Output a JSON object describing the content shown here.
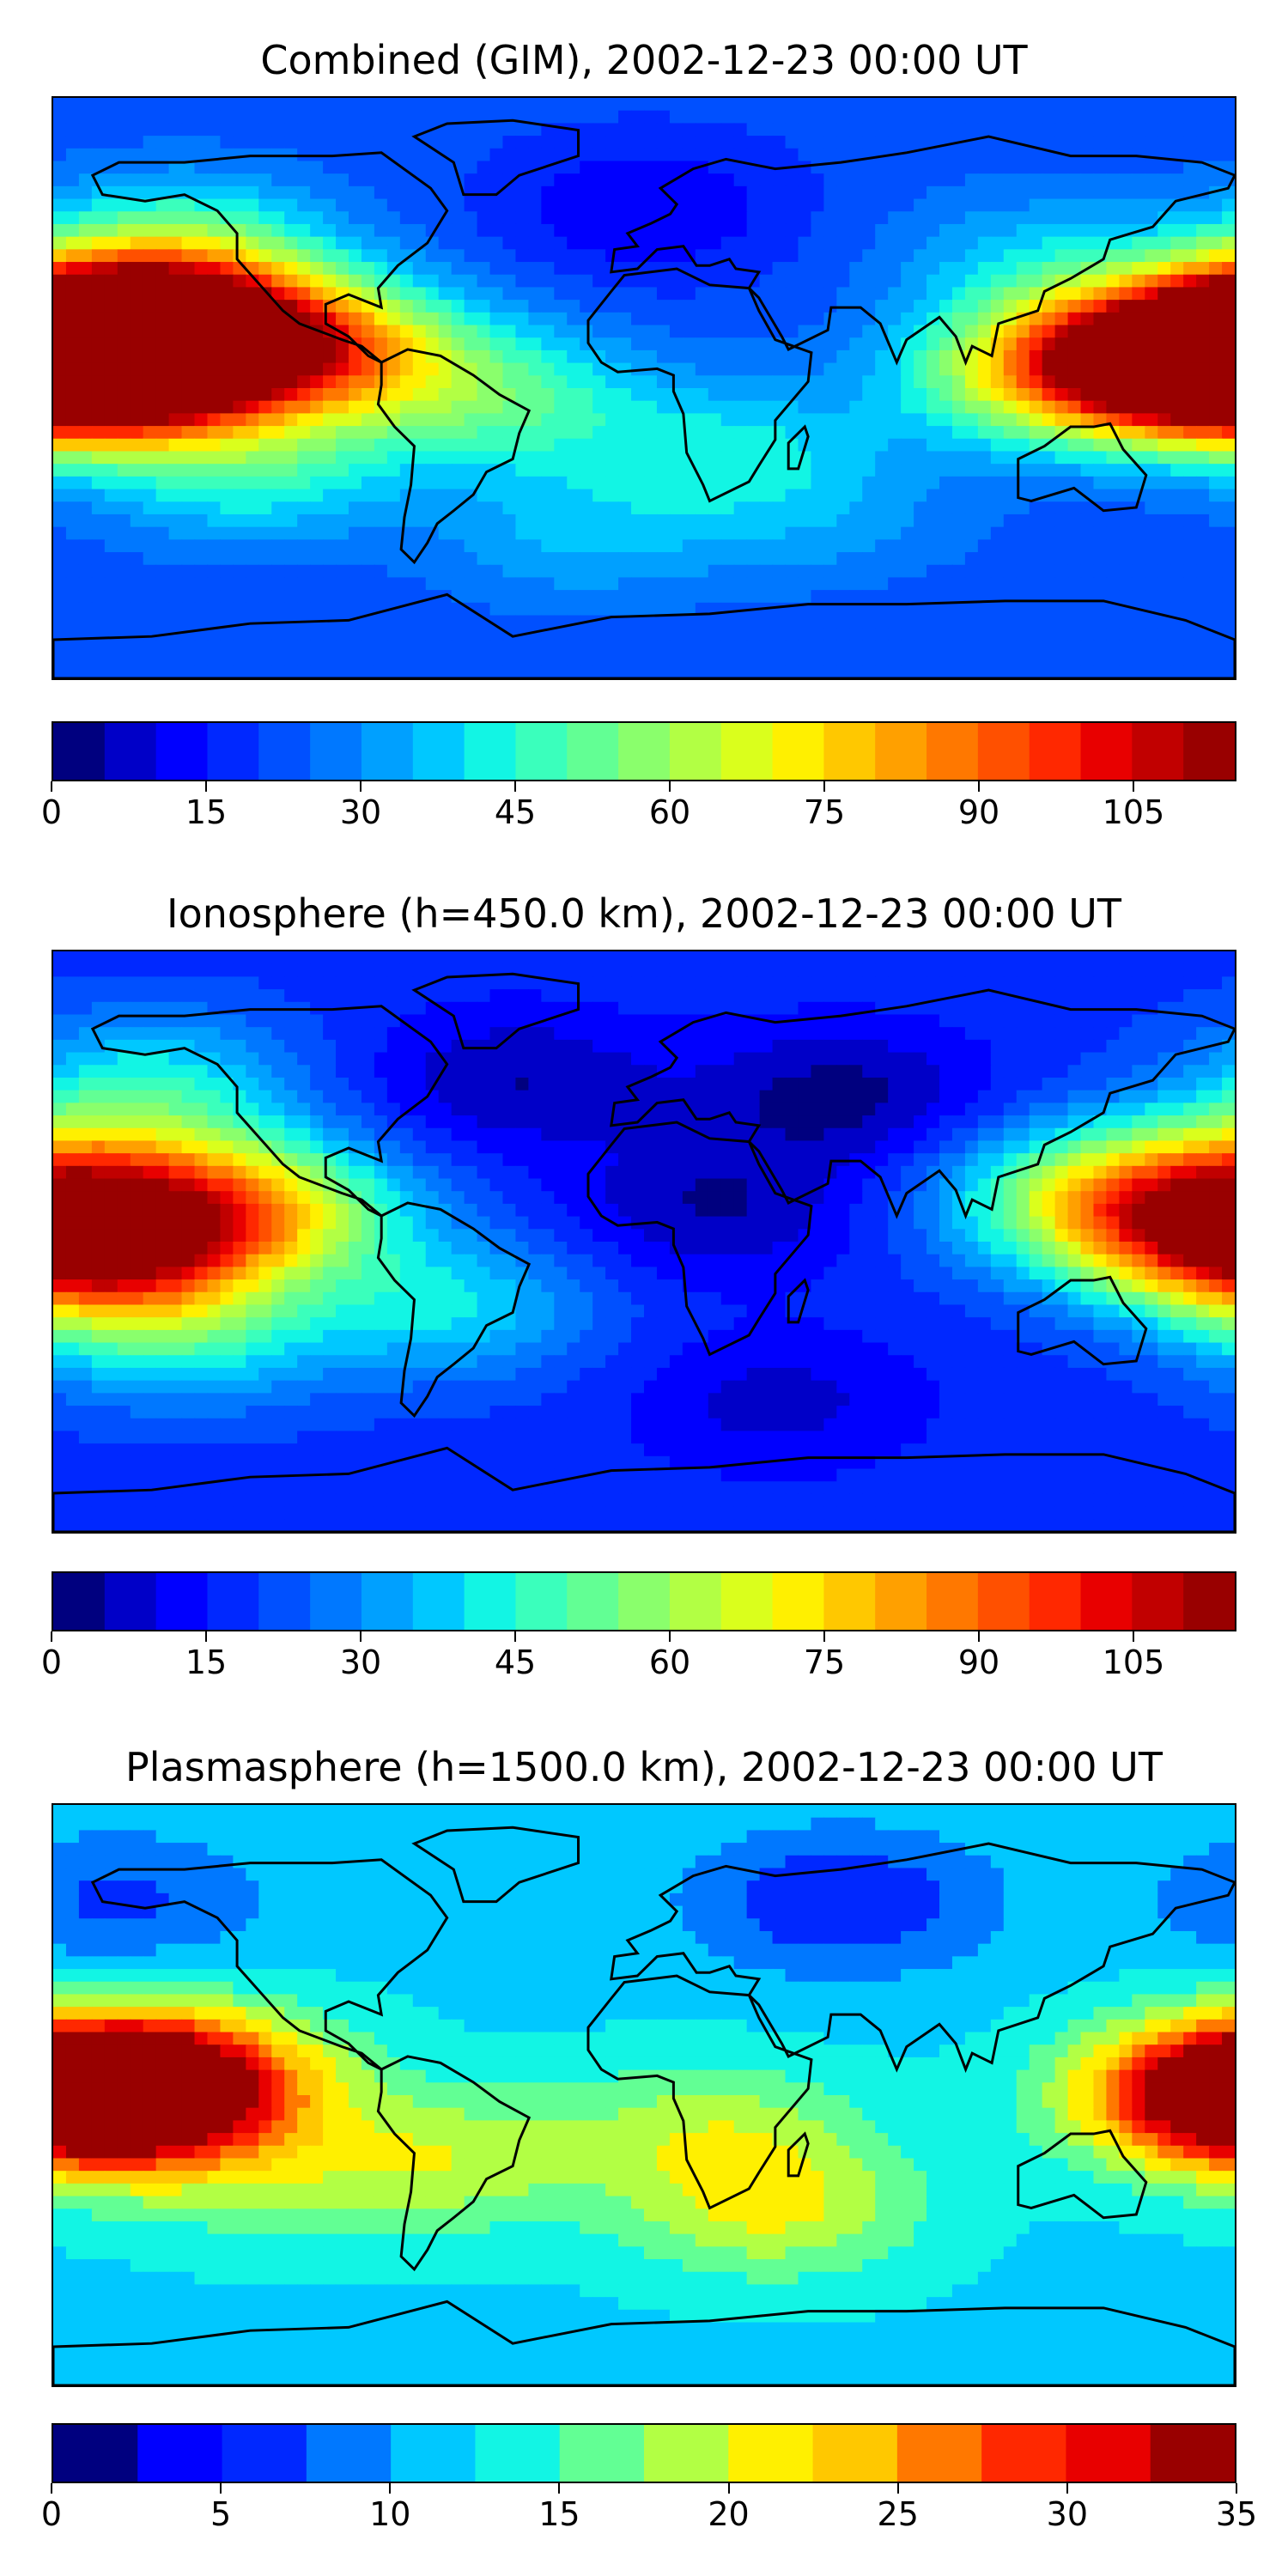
{
  "panels": [
    {
      "title": "Combined (GIM), 2002-12-23 00:00 UT",
      "colorbar": {
        "min": 0,
        "max": 115,
        "step": 5,
        "ticks": [
          "0",
          "15",
          "30",
          "45",
          "60",
          "75",
          "90",
          "105"
        ]
      },
      "blobs": [
        {
          "lon": -160,
          "lat": 20,
          "value": 95
        },
        {
          "lon": -170,
          "lat": 5,
          "value": 112
        },
        {
          "lon": -130,
          "lat": 15,
          "value": 85
        },
        {
          "lon": -90,
          "lat": 10,
          "value": 60
        },
        {
          "lon": 160,
          "lat": 10,
          "value": 85
        },
        {
          "lon": 125,
          "lat": 5,
          "value": 65
        },
        {
          "lon": -40,
          "lat": -5,
          "value": 45
        },
        {
          "lon": -120,
          "lat": -25,
          "value": 45
        },
        {
          "lon": 30,
          "lat": -20,
          "value": 40
        },
        {
          "lon": -140,
          "lat": 45,
          "value": 45
        },
        {
          "lon": 120,
          "lat": 40,
          "value": 35
        },
        {
          "lon": -20,
          "lat": -45,
          "value": 35
        },
        {
          "lon": 60,
          "lat": -45,
          "value": 30
        },
        {
          "lon": 0,
          "lat": 55,
          "value": 10
        },
        {
          "lon": 80,
          "lat": -70,
          "value": 20
        }
      ],
      "background_value": 22
    },
    {
      "title": "Ionosphere  (h=450.0 km), 2002-12-23 00:00 UT",
      "colorbar": {
        "min": 0,
        "max": 115,
        "step": 5,
        "ticks": [
          "0",
          "15",
          "30",
          "45",
          "60",
          "75",
          "90",
          "105"
        ]
      },
      "blobs": [
        {
          "lon": -165,
          "lat": -5,
          "value": 85
        },
        {
          "lon": -120,
          "lat": 10,
          "value": 70
        },
        {
          "lon": -170,
          "lat": 20,
          "value": 60
        },
        {
          "lon": 160,
          "lat": 5,
          "value": 55
        },
        {
          "lon": 135,
          "lat": 15,
          "value": 50
        },
        {
          "lon": -60,
          "lat": -20,
          "value": 40
        },
        {
          "lon": -140,
          "lat": -30,
          "value": 40
        },
        {
          "lon": -150,
          "lat": 50,
          "value": 40
        },
        {
          "lon": 20,
          "lat": 10,
          "value": 5
        },
        {
          "lon": 60,
          "lat": 45,
          "value": 3
        },
        {
          "lon": -40,
          "lat": 50,
          "value": 5
        },
        {
          "lon": 40,
          "lat": -50,
          "value": 8
        }
      ],
      "background_value": 18
    },
    {
      "title": "Plasmasphere (h=1500.0 km), 2002-12-23 00:00 UT",
      "colorbar": {
        "min": 0,
        "max": 35,
        "step": 2.5,
        "ticks": [
          "0",
          "5",
          "10",
          "15",
          "20",
          "25",
          "30",
          "35"
        ]
      },
      "blobs": [
        {
          "lon": -165,
          "lat": 0,
          "value": 31
        },
        {
          "lon": -140,
          "lat": 5,
          "value": 27
        },
        {
          "lon": 175,
          "lat": 0,
          "value": 27
        },
        {
          "lon": -60,
          "lat": -20,
          "value": 19
        },
        {
          "lon": 20,
          "lat": -10,
          "value": 18
        },
        {
          "lon": 40,
          "lat": -35,
          "value": 20
        },
        {
          "lon": -120,
          "lat": -25,
          "value": 16
        },
        {
          "lon": 120,
          "lat": 20,
          "value": 12
        },
        {
          "lon": 60,
          "lat": 60,
          "value": 5
        },
        {
          "lon": -160,
          "lat": 60,
          "value": 7
        },
        {
          "lon": 0,
          "lat": -75,
          "value": 12
        }
      ],
      "background_value": 12
    }
  ],
  "colormap": [
    "#00007f",
    "#0000c8",
    "#0000ff",
    "#0028ff",
    "#0050ff",
    "#0078ff",
    "#00a0ff",
    "#00c8ff",
    "#12f5e4",
    "#3affbc",
    "#62ff94",
    "#8aff6c",
    "#b2ff44",
    "#daff1c",
    "#fff000",
    "#ffc800",
    "#ffa000",
    "#ff7800",
    "#ff5000",
    "#ff2800",
    "#e80000",
    "#c10000",
    "#990000"
  ]
}
